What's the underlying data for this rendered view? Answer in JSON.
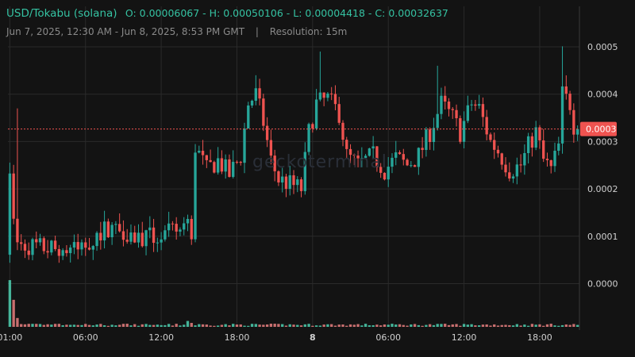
{
  "header": {
    "pair": "USD/Tokabu (solana)",
    "ohlc": "O: 0.00006067 - H: 0.00050106 - L: 0.00004418 - C: 0.00032637",
    "range": "Jun 7, 2025, 12:30 AM - Jun 8, 2025, 8:53 PM GMT",
    "separator": "|",
    "resolution": "Resolution: 15m"
  },
  "watermark": "geckoterminal",
  "colors": {
    "background": "#131313",
    "up": "#26a69a",
    "down": "#ef5350",
    "grid": "#2a2a2a",
    "axis_text": "#d0d0d0",
    "last_price_tag": "#ef5350"
  },
  "chart_data": {
    "type": "candlestick",
    "title": "USD/Tokabu (solana)",
    "xlabel": "",
    "ylabel": "",
    "ylim": [
      -6.7e-06,
      0.0005158
    ],
    "y_ticks": [
      {
        "value": 0.0,
        "label": "0.0000"
      },
      {
        "value": 0.0001,
        "label": "0.0001"
      },
      {
        "value": 0.0002,
        "label": "0.0002"
      },
      {
        "value": 0.0003,
        "label": "0.0003"
      },
      {
        "value": 0.0004,
        "label": "0.0004"
      },
      {
        "value": 0.0005,
        "label": "0.0005"
      }
    ],
    "x_ticks": [
      {
        "index": 0,
        "label": "01:00",
        "bold": false
      },
      {
        "index": 20,
        "label": "06:00",
        "bold": false
      },
      {
        "index": 40,
        "label": "12:00",
        "bold": false
      },
      {
        "index": 60,
        "label": "18:00",
        "bold": false
      },
      {
        "index": 80,
        "label": "8",
        "bold": true
      },
      {
        "index": 100,
        "label": "06:00",
        "bold": false
      },
      {
        "index": 120,
        "label": "12:00",
        "bold": false
      },
      {
        "index": 140,
        "label": "18:00",
        "bold": false
      }
    ],
    "last_price": 0.00032637,
    "last_price_label": "0.0003",
    "price_path": [
      [
        0,
        0.000255
      ],
      [
        1,
        0.00015
      ],
      [
        2,
        9.5e-05
      ],
      [
        3,
        8.2e-05
      ],
      [
        6,
        8e-05
      ],
      [
        10,
        7.5e-05
      ],
      [
        14,
        7e-05
      ],
      [
        18,
        7.2e-05
      ],
      [
        22,
        9.5e-05
      ],
      [
        26,
        0.00012
      ],
      [
        30,
        0.000115
      ],
      [
        33,
        0.0001
      ],
      [
        36,
        9.5e-05
      ],
      [
        40,
        0.0001
      ],
      [
        44,
        0.00011
      ],
      [
        47,
        0.000125
      ],
      [
        48,
        0.000115
      ],
      [
        49,
        0.00029
      ],
      [
        52,
        0.00024
      ],
      [
        55,
        0.00026
      ],
      [
        58,
        0.00023
      ],
      [
        61,
        0.00027
      ],
      [
        63,
        0.00038
      ],
      [
        65,
        0.0004
      ],
      [
        67,
        0.00034
      ],
      [
        69,
        0.00026
      ],
      [
        71,
        0.00022
      ],
      [
        74,
        0.00021
      ],
      [
        77,
        0.0002
      ],
      [
        79,
        0.00032
      ],
      [
        81,
        0.00038
      ],
      [
        84,
        0.00039
      ],
      [
        87,
        0.00036
      ],
      [
        89,
        0.00027
      ],
      [
        92,
        0.00025
      ],
      [
        96,
        0.00027
      ],
      [
        99,
        0.00024
      ],
      [
        102,
        0.000265
      ],
      [
        105,
        0.00025
      ],
      [
        108,
        0.00027
      ],
      [
        111,
        0.00032
      ],
      [
        114,
        0.00038
      ],
      [
        117,
        0.00035
      ],
      [
        119,
        0.00032
      ],
      [
        122,
        0.00038
      ],
      [
        124,
        0.00037
      ],
      [
        127,
        0.0003
      ],
      [
        129,
        0.00028
      ],
      [
        132,
        0.00024
      ],
      [
        135,
        0.00025
      ],
      [
        137,
        0.00029
      ],
      [
        139,
        0.00032
      ],
      [
        141,
        0.00026
      ],
      [
        143,
        0.00024
      ],
      [
        145,
        0.00029
      ],
      [
        146,
        0.0004
      ],
      [
        148,
        0.00038
      ],
      [
        149,
        0.000335
      ],
      [
        150,
        0.000326
      ]
    ],
    "peak_wicks": [
      {
        "index": 2,
        "high": 0.00037
      },
      {
        "index": 65,
        "high": 0.00044
      },
      {
        "index": 82,
        "high": 0.00049
      },
      {
        "index": 113,
        "high": 0.00046
      },
      {
        "index": 146,
        "high": 0.000501
      }
    ],
    "volume_spikes": [
      {
        "index": 0,
        "level": 0.95
      },
      {
        "index": 1,
        "level": 0.55
      },
      {
        "index": 2,
        "level": 0.18
      },
      {
        "index": 47,
        "level": 0.12
      },
      {
        "index": 48,
        "level": 0.08
      }
    ],
    "volume_base": 0.05
  }
}
